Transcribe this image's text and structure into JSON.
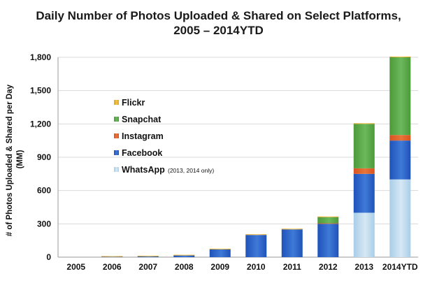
{
  "chart_data": {
    "type": "bar",
    "stacked": true,
    "title_line1": "Daily Number of Photos Uploaded & Shared on Select Platforms,",
    "title_line2": "2005 – 2014YTD",
    "ylabel_line1": "# of Photos Uploaded & Shared per Day",
    "ylabel_line2": "(MM)",
    "xlabel": "",
    "categories": [
      "2005",
      "2006",
      "2007",
      "2008",
      "2009",
      "2010",
      "2011",
      "2012",
      "2013",
      "2014YTD"
    ],
    "ylim": [
      0,
      1800
    ],
    "yticks": [
      0,
      300,
      600,
      900,
      1200,
      1500,
      1800
    ],
    "ytick_labels": [
      "0",
      "300",
      "600",
      "900",
      "1,200",
      "1,500",
      "1,800"
    ],
    "grid": true,
    "legend_position": "left, inside plot area",
    "stack_order": [
      "WhatsApp",
      "Facebook",
      "Instagram",
      "Snapchat",
      "Flickr"
    ],
    "legend_order": [
      "Flickr",
      "Snapchat",
      "Instagram",
      "Facebook",
      "WhatsApp"
    ],
    "series": [
      {
        "name": "WhatsApp",
        "note": "(2013, 2014 only)",
        "color": "#a9cde8",
        "color_top": "#d6e8f4",
        "values": [
          0,
          0,
          0,
          0,
          0,
          0,
          0,
          0,
          400,
          700
        ]
      },
      {
        "name": "Facebook",
        "note": "",
        "color": "#1f52b8",
        "color_top": "#3f7ad8",
        "values": [
          0,
          3,
          6,
          15,
          70,
          200,
          250,
          300,
          350,
          350
        ]
      },
      {
        "name": "Instagram",
        "note": "",
        "color": "#d9531e",
        "color_top": "#e8753a",
        "values": [
          0,
          0,
          0,
          0,
          0,
          0,
          0,
          5,
          50,
          50
        ]
      },
      {
        "name": "Snapchat",
        "note": "",
        "color": "#4c9a3c",
        "color_top": "#6cb85c",
        "values": [
          0,
          0,
          0,
          0,
          0,
          0,
          0,
          55,
          400,
          700
        ]
      },
      {
        "name": "Flickr",
        "note": "",
        "color": "#e2a319",
        "color_top": "#f0c24a",
        "values": [
          0,
          1,
          2,
          3,
          3,
          3,
          3,
          4,
          5,
          5
        ]
      }
    ]
  }
}
